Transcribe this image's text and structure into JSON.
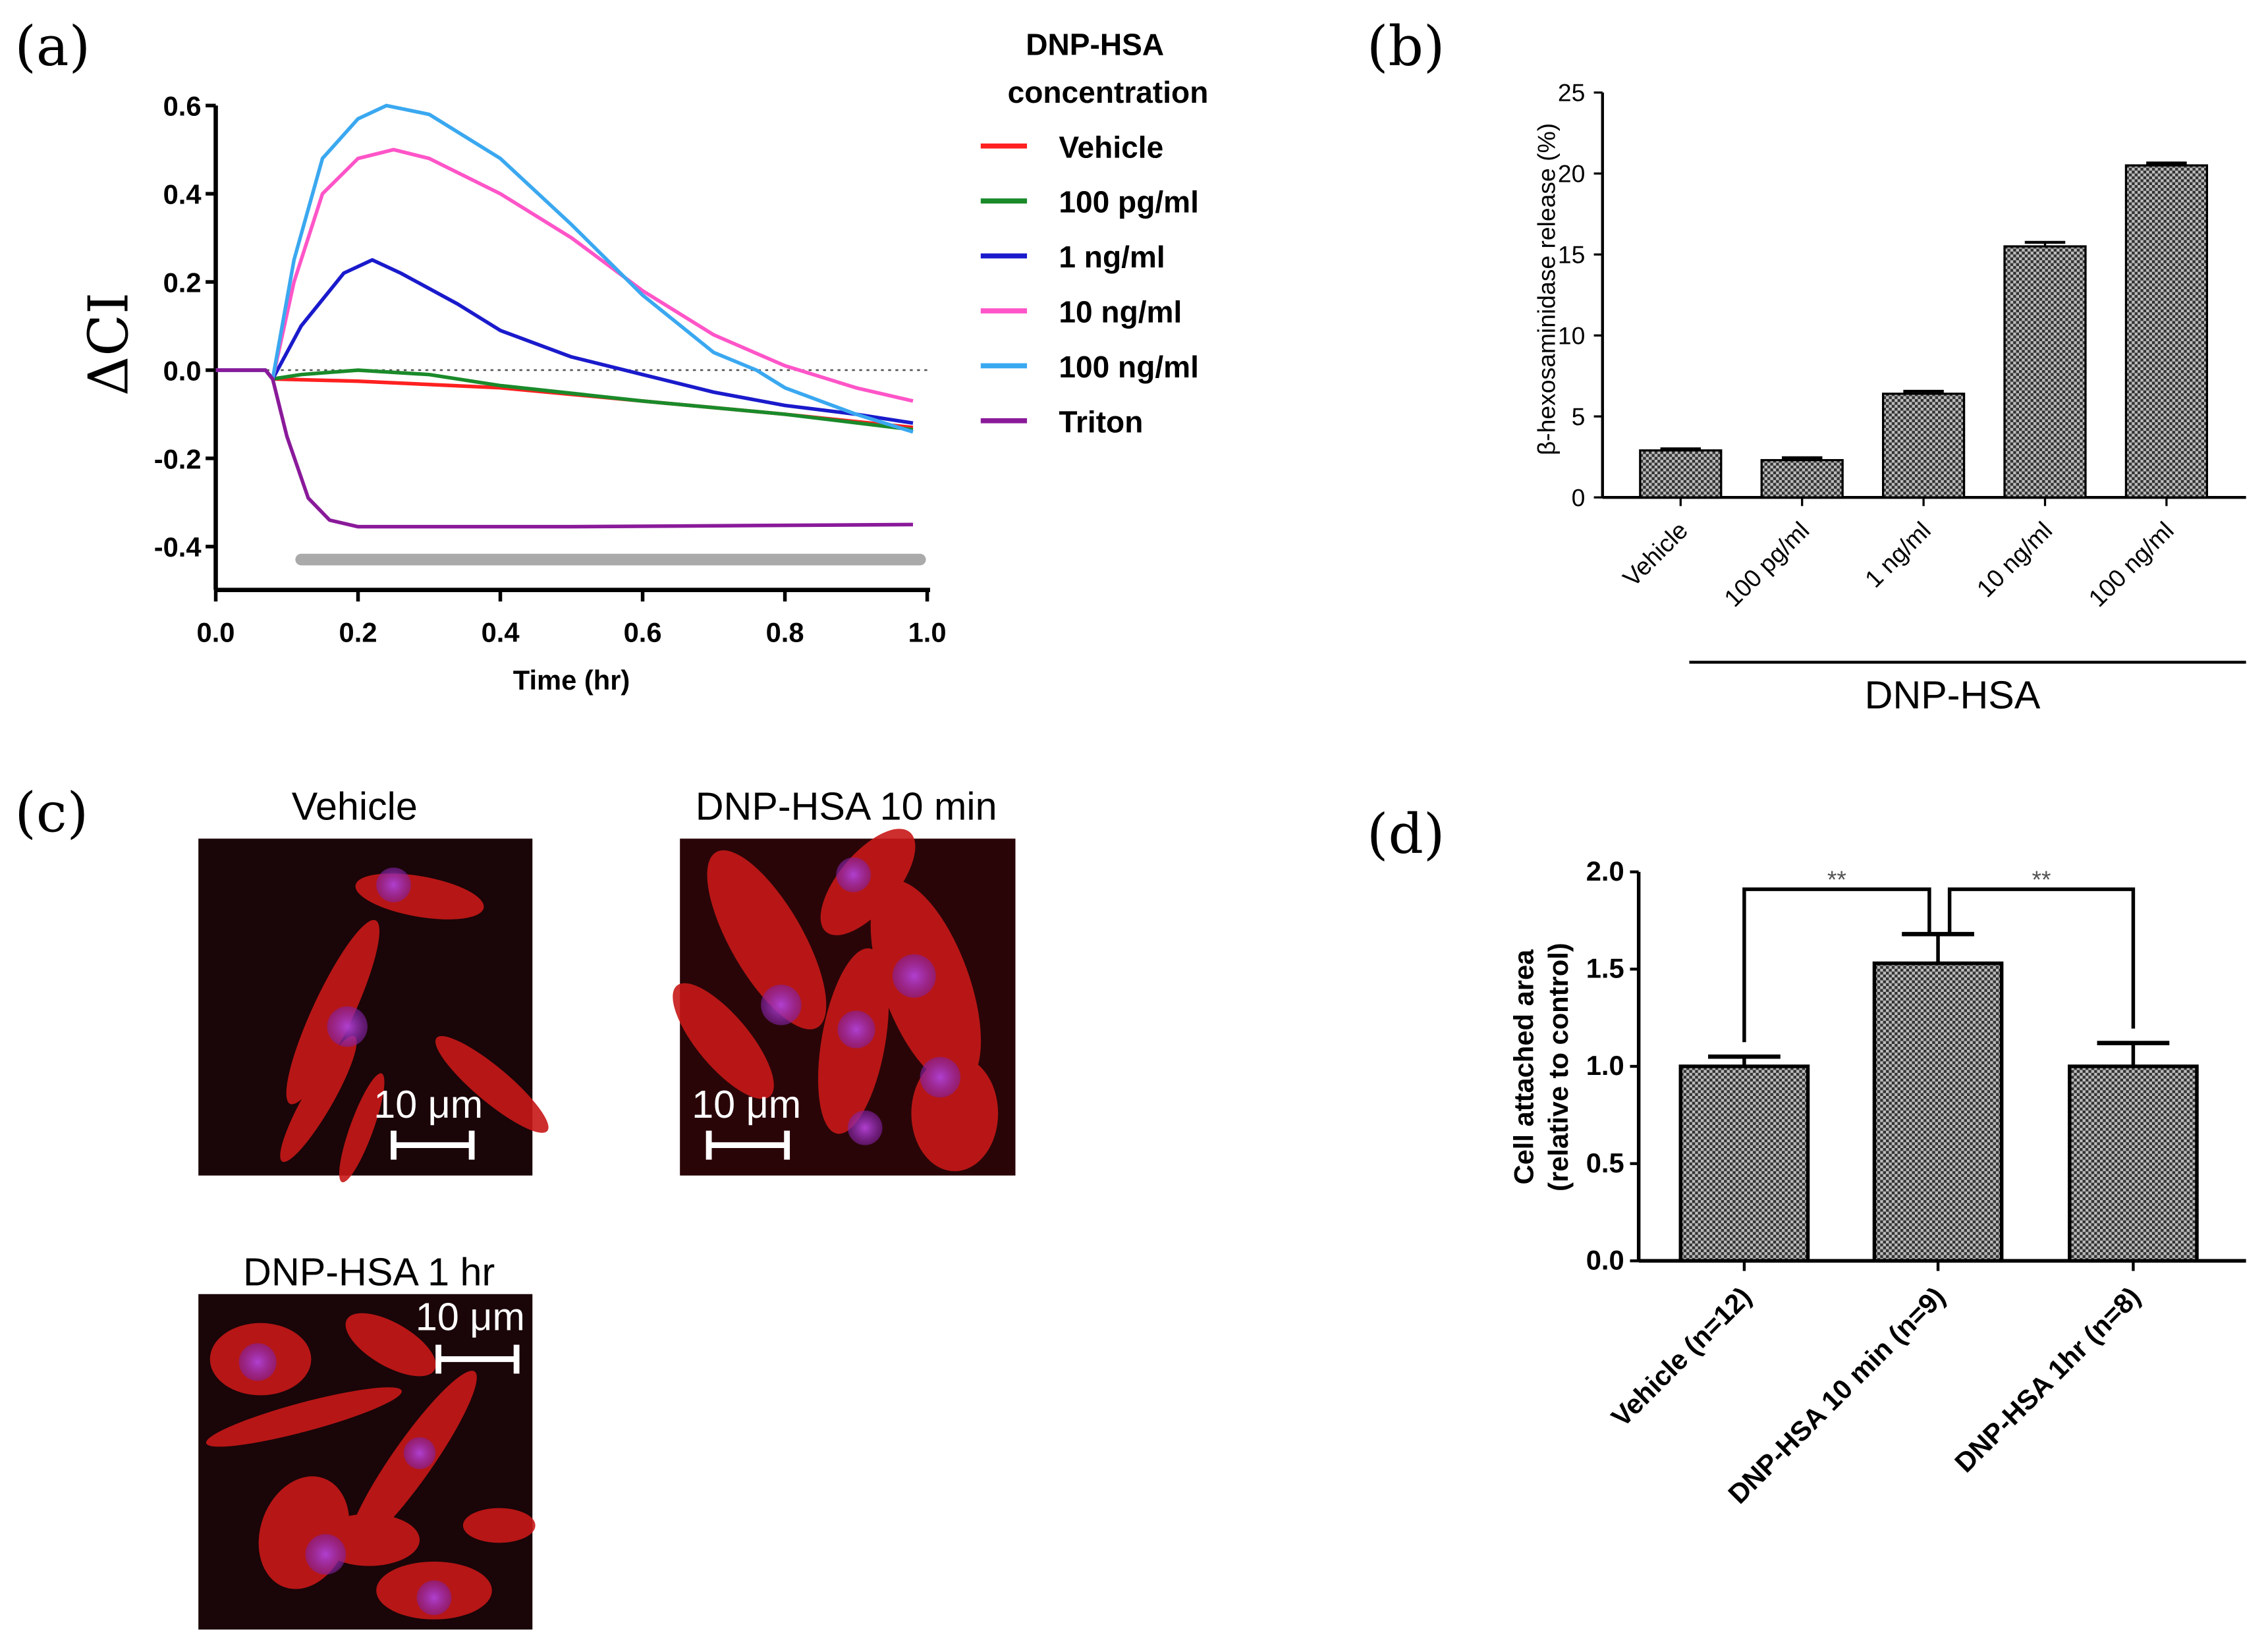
{
  "panel_labels": {
    "a": "(a)",
    "b": "(b)",
    "c": "(c)",
    "d": "(d)"
  },
  "chart_data": [
    {
      "id": "a",
      "type": "line",
      "title": "",
      "xlabel": "Time (hr)",
      "ylabel": "ΔCI",
      "xlim": [
        0,
        1.0
      ],
      "ylim": [
        -0.5,
        0.6
      ],
      "xticks": [
        "0.0",
        "0.2",
        "0.4",
        "0.6",
        "0.8",
        "1.0"
      ],
      "yticks": [
        "-0.4",
        "-0.2",
        "0.0",
        "0.2",
        "0.4",
        "0.6"
      ],
      "legend_title": [
        "DNP-HSA",
        "concentration"
      ],
      "legend_placement": "right",
      "reference_line": 0,
      "treatment_bar": [
        0.12,
        0.99
      ],
      "series": [
        {
          "name": "Vehicle",
          "color": "#ff2020",
          "points": [
            [
              0,
              0
            ],
            [
              0.07,
              0
            ],
            [
              0.08,
              -0.02
            ],
            [
              0.2,
              -0.025
            ],
            [
              0.4,
              -0.04
            ],
            [
              0.6,
              -0.07
            ],
            [
              0.8,
              -0.1
            ],
            [
              0.98,
              -0.13
            ]
          ]
        },
        {
          "name": "100 pg/ml",
          "color": "#1a8a2a",
          "points": [
            [
              0,
              0
            ],
            [
              0.07,
              0
            ],
            [
              0.08,
              -0.02
            ],
            [
              0.12,
              -0.01
            ],
            [
              0.2,
              0
            ],
            [
              0.3,
              -0.01
            ],
            [
              0.4,
              -0.035
            ],
            [
              0.6,
              -0.07
            ],
            [
              0.8,
              -0.1
            ],
            [
              0.98,
              -0.135
            ]
          ]
        },
        {
          "name": "1 ng/ml",
          "color": "#1a1acc",
          "points": [
            [
              0,
              0
            ],
            [
              0.07,
              0
            ],
            [
              0.08,
              -0.02
            ],
            [
              0.12,
              0.1
            ],
            [
              0.18,
              0.22
            ],
            [
              0.22,
              0.25
            ],
            [
              0.26,
              0.22
            ],
            [
              0.34,
              0.15
            ],
            [
              0.4,
              0.09
            ],
            [
              0.5,
              0.03
            ],
            [
              0.6,
              -0.01
            ],
            [
              0.7,
              -0.05
            ],
            [
              0.8,
              -0.08
            ],
            [
              0.9,
              -0.1
            ],
            [
              0.98,
              -0.12
            ]
          ]
        },
        {
          "name": "10 ng/ml",
          "color": "#ff55c8",
          "points": [
            [
              0,
              0
            ],
            [
              0.07,
              0
            ],
            [
              0.08,
              -0.02
            ],
            [
              0.11,
              0.2
            ],
            [
              0.15,
              0.4
            ],
            [
              0.2,
              0.48
            ],
            [
              0.25,
              0.5
            ],
            [
              0.3,
              0.48
            ],
            [
              0.4,
              0.4
            ],
            [
              0.5,
              0.3
            ],
            [
              0.6,
              0.18
            ],
            [
              0.7,
              0.08
            ],
            [
              0.8,
              0.01
            ],
            [
              0.9,
              -0.04
            ],
            [
              0.98,
              -0.07
            ]
          ]
        },
        {
          "name": "100 ng/ml",
          "color": "#3aa8f0",
          "points": [
            [
              0,
              0
            ],
            [
              0.07,
              0
            ],
            [
              0.08,
              -0.02
            ],
            [
              0.11,
              0.25
            ],
            [
              0.15,
              0.48
            ],
            [
              0.2,
              0.57
            ],
            [
              0.24,
              0.6
            ],
            [
              0.3,
              0.58
            ],
            [
              0.4,
              0.48
            ],
            [
              0.5,
              0.33
            ],
            [
              0.6,
              0.17
            ],
            [
              0.7,
              0.04
            ],
            [
              0.76,
              0
            ],
            [
              0.8,
              -0.04
            ],
            [
              0.9,
              -0.1
            ],
            [
              0.98,
              -0.14
            ]
          ]
        },
        {
          "name": "Triton",
          "color": "#8a1a9a",
          "points": [
            [
              0,
              0
            ],
            [
              0.07,
              0
            ],
            [
              0.08,
              -0.02
            ],
            [
              0.1,
              -0.15
            ],
            [
              0.13,
              -0.29
            ],
            [
              0.16,
              -0.34
            ],
            [
              0.2,
              -0.355
            ],
            [
              0.5,
              -0.355
            ],
            [
              0.98,
              -0.35
            ]
          ]
        }
      ]
    },
    {
      "id": "b",
      "type": "bar",
      "xlabel": "DNP-HSA",
      "ylabel": "β-hexosaminidase release (%)",
      "ylim": [
        0,
        25
      ],
      "yticks": [
        "0",
        "5",
        "10",
        "15",
        "20",
        "25"
      ],
      "categories": [
        "Vehicle",
        "100 pg/ml",
        "1 ng/ml",
        "10 ng/ml",
        "100 ng/ml"
      ],
      "values": [
        2.9,
        2.3,
        6.4,
        15.5,
        20.5
      ],
      "errors": [
        0.1,
        0.15,
        0.15,
        0.25,
        0.15
      ]
    },
    {
      "id": "d",
      "type": "bar",
      "ylabel": [
        "Cell attached area",
        "(relative to control)"
      ],
      "ylim": [
        0,
        2.0
      ],
      "yticks": [
        "0.0",
        "0.5",
        "1.0",
        "1.5",
        "2.0"
      ],
      "categories": [
        "Vehicle (n=12)",
        "DNP-HSA 10 min (n=9)",
        "DNP-HSA 1hr (n=8)"
      ],
      "values": [
        1.0,
        1.53,
        1.0
      ],
      "errors": [
        0.05,
        0.15,
        0.12
      ],
      "significance": [
        {
          "from": 0,
          "to": 1,
          "label": "**"
        },
        {
          "from": 1,
          "to": 2,
          "label": "**"
        }
      ]
    }
  ],
  "micrographs": [
    {
      "title": "Vehicle",
      "scale": "10 μm"
    },
    {
      "title": "DNP-HSA 10 min",
      "scale": "10 μm"
    },
    {
      "title": "DNP-HSA 1 hr",
      "scale": "10 μm"
    }
  ]
}
